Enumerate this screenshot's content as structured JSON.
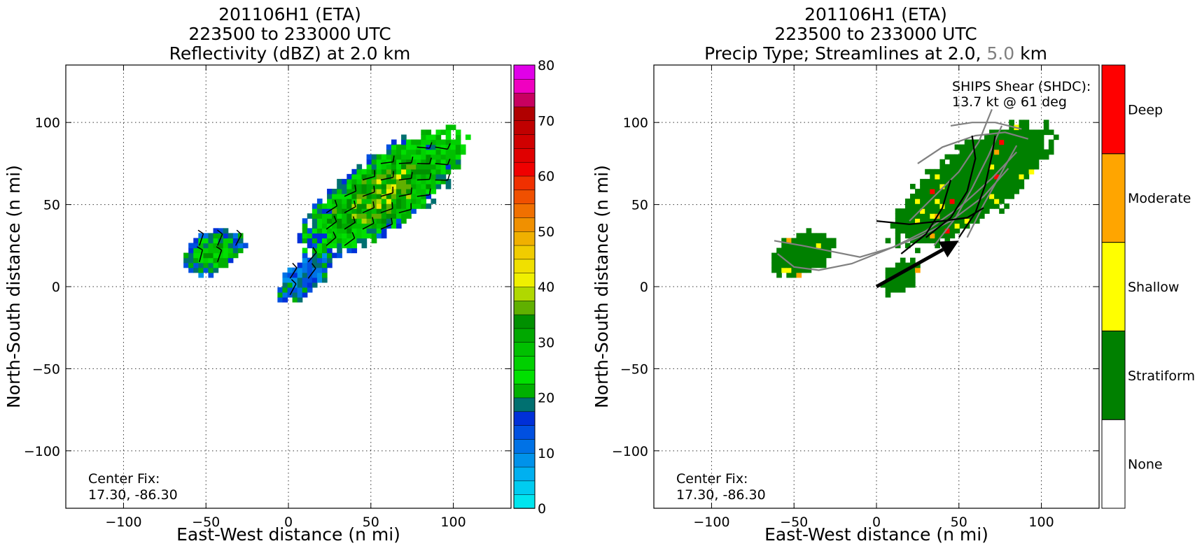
{
  "figure": {
    "left_panel": {
      "title_lines": [
        "201106H1 (ETA)",
        "223500 to 233000 UTC",
        "Reflectivity (dBZ) at 2.0 km"
      ],
      "xlabel": "East-West distance (n mi)",
      "ylabel": "North-South distance (n mi)",
      "center_fix": [
        "Center Fix:",
        "17.30, -86.30"
      ]
    },
    "right_panel": {
      "title_lines": [
        "201106H1 (ETA)",
        "223500 to 233000 UTC"
      ],
      "title_line3_parts": [
        "Precip Type; Streamlines at 2.0, ",
        "5.0",
        " km"
      ],
      "xlabel": "East-West distance (n mi)",
      "ylabel": "North-South distance (n mi)",
      "center_fix": [
        "Center Fix:",
        "17.30, -86.30"
      ],
      "shear_label": [
        "SHIPS Shear (SHDC):",
        "13.7 kt @ 61 deg"
      ]
    }
  },
  "chart_data": [
    {
      "type": "heatmap",
      "field": "Reflectivity (dBZ) at 2.0 km",
      "xlim": [
        -135,
        135
      ],
      "ylim": [
        -135,
        135
      ],
      "xticks": [
        -100,
        -50,
        0,
        50,
        100
      ],
      "yticks": [
        -100,
        -50,
        0,
        50,
        100
      ],
      "grid": true,
      "colorbar": {
        "range": [
          0,
          80
        ],
        "step": 2.5,
        "ticks": [
          0,
          10,
          20,
          30,
          40,
          50,
          60,
          70,
          80
        ],
        "colors": [
          "#00e5ee",
          "#00ccf0",
          "#00b0f0",
          "#0092ea",
          "#0072e6",
          "#0050e0",
          "#0030d8",
          "#007070",
          "#00b000",
          "#00e000",
          "#00d000",
          "#00c000",
          "#00a800",
          "#009000",
          "#60b000",
          "#b0d800",
          "#f0f000",
          "#f0e000",
          "#f0cc00",
          "#f0b000",
          "#f09000",
          "#f07000",
          "#f05000",
          "#f03000",
          "#f00000",
          "#e00000",
          "#d00000",
          "#c00000",
          "#b00000",
          "#c80060",
          "#f000c0",
          "#e000e8",
          "#c040e0",
          "#a050d0",
          "#7048a0",
          "#402060",
          "#000000"
        ]
      },
      "echo_regions": [
        {
          "name": "main band",
          "center": [
            58,
            57
          ],
          "semi_axes": [
            58,
            22
          ],
          "angle_deg": 36,
          "peak_dbz": 36
        },
        {
          "name": "western cell",
          "center": [
            -45,
            21
          ],
          "semi_axes": [
            20,
            12
          ],
          "angle_deg": 25,
          "peak_dbz": 28
        },
        {
          "name": "southern patch",
          "center": [
            10,
            5
          ],
          "semi_axes": [
            18,
            10
          ],
          "angle_deg": 40,
          "peak_dbz": 18
        }
      ],
      "center_fix_lat_lon": [
        17.3,
        -86.3
      ]
    },
    {
      "type": "heatmap",
      "field": "Precip Type",
      "xlim": [
        -135,
        135
      ],
      "ylim": [
        -135,
        135
      ],
      "xticks": [
        -100,
        -50,
        0,
        50,
        100
      ],
      "yticks": [
        -100,
        -50,
        0,
        50,
        100
      ],
      "grid": true,
      "categories": [
        "None",
        "Stratiform",
        "Shallow",
        "Moderate",
        "Deep"
      ],
      "category_colors": [
        "#ffffff",
        "#008000",
        "#ffff00",
        "#ffa500",
        "#ff0000"
      ],
      "shear_vector": {
        "from": [
          0,
          0
        ],
        "to": [
          50,
          28
        ],
        "magnitude_kt": 13.7,
        "direction_deg": 61
      },
      "streamline_levels_km": [
        2.0,
        5.0
      ],
      "streamline_colors": {
        "2.0": "#000000",
        "5.0": "#808080"
      },
      "center_fix_lat_lon": [
        17.3,
        -86.3
      ]
    }
  ]
}
